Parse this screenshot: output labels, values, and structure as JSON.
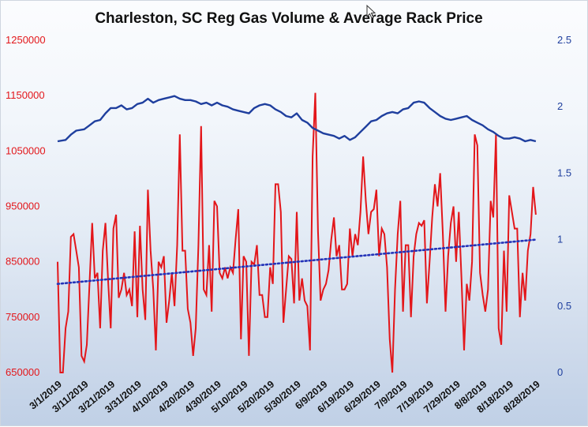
{
  "chart_data": {
    "type": "line",
    "title": "Charleston, SC Reg Gas Volume & Average Rack Price",
    "y_left": {
      "ticks": [
        "650000",
        "750000",
        "850000",
        "950000",
        "1050000",
        "1150000",
        "1250000"
      ],
      "range": [
        650000,
        1250000
      ],
      "color": "#e3161a"
    },
    "y_right": {
      "ticks": [
        "0",
        "0.5",
        "1",
        "1.5",
        "2",
        "2.5"
      ],
      "range": [
        0,
        2.5
      ],
      "color": "#1f3f9e"
    },
    "x_ticks": [
      "3/1/2019",
      "3/11/2019",
      "3/21/2019",
      "3/31/2019",
      "4/10/2019",
      "4/20/2019",
      "4/30/2019",
      "5/10/2019",
      "5/20/2019",
      "5/30/2019",
      "6/9/2019",
      "6/19/2019",
      "6/29/2019",
      "7/9/2019",
      "7/19/2019",
      "7/29/2019",
      "8/8/2019",
      "8/18/2019",
      "8/28/2019"
    ],
    "x_range_days": [
      0,
      183
    ],
    "series": [
      {
        "axis": "left",
        "color": "#e3161a",
        "points": [
          [
            0,
            850000
          ],
          [
            1,
            650000
          ],
          [
            2,
            650000
          ],
          [
            3,
            730000
          ],
          [
            4,
            760000
          ],
          [
            5,
            895000
          ],
          [
            6,
            900000
          ],
          [
            7,
            870000
          ],
          [
            8,
            840000
          ],
          [
            9,
            680000
          ],
          [
            10,
            670000
          ],
          [
            11,
            700000
          ],
          [
            12,
            810000
          ],
          [
            13,
            920000
          ],
          [
            14,
            820000
          ],
          [
            15,
            830000
          ],
          [
            16,
            730000
          ],
          [
            17,
            870000
          ],
          [
            18,
            920000
          ],
          [
            19,
            815000
          ],
          [
            20,
            730000
          ],
          [
            21,
            910000
          ],
          [
            22,
            935000
          ],
          [
            23,
            785000
          ],
          [
            24,
            800000
          ],
          [
            25,
            830000
          ],
          [
            26,
            790000
          ],
          [
            27,
            800000
          ],
          [
            28,
            770000
          ],
          [
            29,
            905000
          ],
          [
            30,
            750000
          ],
          [
            31,
            915000
          ],
          [
            32,
            800000
          ],
          [
            33,
            745000
          ],
          [
            34,
            980000
          ],
          [
            35,
            870000
          ],
          [
            36,
            800000
          ],
          [
            37,
            690000
          ],
          [
            38,
            850000
          ],
          [
            39,
            840000
          ],
          [
            40,
            860000
          ],
          [
            41,
            740000
          ],
          [
            42,
            780000
          ],
          [
            43,
            830000
          ],
          [
            44,
            770000
          ],
          [
            45,
            880000
          ],
          [
            46,
            1080000
          ],
          [
            47,
            870000
          ],
          [
            48,
            870000
          ],
          [
            49,
            765000
          ],
          [
            50,
            740000
          ],
          [
            51,
            680000
          ],
          [
            52,
            730000
          ],
          [
            53,
            880000
          ],
          [
            54,
            1095000
          ],
          [
            55,
            800000
          ],
          [
            56,
            790000
          ],
          [
            57,
            880000
          ],
          [
            58,
            760000
          ],
          [
            59,
            960000
          ],
          [
            60,
            950000
          ],
          [
            61,
            830000
          ],
          [
            62,
            820000
          ],
          [
            63,
            840000
          ],
          [
            64,
            820000
          ],
          [
            65,
            840000
          ],
          [
            66,
            830000
          ],
          [
            67,
            890000
          ],
          [
            68,
            945000
          ],
          [
            69,
            710000
          ],
          [
            70,
            860000
          ],
          [
            71,
            850000
          ],
          [
            72,
            680000
          ],
          [
            73,
            850000
          ],
          [
            74,
            845000
          ],
          [
            75,
            880000
          ],
          [
            76,
            790000
          ],
          [
            77,
            790000
          ],
          [
            78,
            750000
          ],
          [
            79,
            750000
          ],
          [
            80,
            840000
          ],
          [
            81,
            810000
          ],
          [
            82,
            990000
          ],
          [
            83,
            990000
          ],
          [
            84,
            940000
          ],
          [
            85,
            740000
          ],
          [
            86,
            800000
          ],
          [
            87,
            860000
          ],
          [
            88,
            855000
          ],
          [
            89,
            775000
          ],
          [
            90,
            940000
          ],
          [
            91,
            780000
          ],
          [
            92,
            820000
          ],
          [
            93,
            780000
          ],
          [
            94,
            770000
          ],
          [
            95,
            690000
          ],
          [
            96,
            1040000
          ],
          [
            97,
            1155000
          ],
          [
            98,
            905000
          ],
          [
            99,
            780000
          ],
          [
            100,
            800000
          ],
          [
            101,
            810000
          ],
          [
            102,
            835000
          ],
          [
            103,
            890000
          ],
          [
            104,
            930000
          ],
          [
            105,
            860000
          ],
          [
            106,
            880000
          ],
          [
            107,
            800000
          ],
          [
            108,
            800000
          ],
          [
            109,
            810000
          ],
          [
            110,
            910000
          ],
          [
            111,
            860000
          ],
          [
            112,
            900000
          ],
          [
            113,
            880000
          ],
          [
            114,
            940000
          ],
          [
            115,
            1040000
          ],
          [
            116,
            960000
          ],
          [
            117,
            900000
          ],
          [
            118,
            940000
          ],
          [
            119,
            945000
          ],
          [
            120,
            980000
          ],
          [
            121,
            860000
          ],
          [
            122,
            910000
          ],
          [
            123,
            900000
          ],
          [
            124,
            840000
          ],
          [
            125,
            710000
          ],
          [
            126,
            650000
          ],
          [
            127,
            800000
          ],
          [
            128,
            900000
          ],
          [
            129,
            960000
          ],
          [
            130,
            760000
          ],
          [
            131,
            880000
          ],
          [
            132,
            880000
          ],
          [
            133,
            750000
          ],
          [
            134,
            860000
          ],
          [
            135,
            900000
          ],
          [
            136,
            920000
          ],
          [
            137,
            915000
          ],
          [
            138,
            925000
          ],
          [
            139,
            775000
          ],
          [
            140,
            850000
          ],
          [
            141,
            930000
          ],
          [
            142,
            990000
          ],
          [
            143,
            950000
          ],
          [
            144,
            1010000
          ],
          [
            145,
            900000
          ],
          [
            146,
            760000
          ],
          [
            147,
            860000
          ],
          [
            148,
            920000
          ],
          [
            149,
            950000
          ],
          [
            150,
            850000
          ],
          [
            151,
            940000
          ],
          [
            152,
            820000
          ],
          [
            153,
            690000
          ],
          [
            154,
            810000
          ],
          [
            155,
            780000
          ],
          [
            156,
            850000
          ],
          [
            157,
            1080000
          ],
          [
            158,
            1060000
          ],
          [
            159,
            830000
          ],
          [
            160,
            790000
          ],
          [
            161,
            760000
          ],
          [
            162,
            800000
          ],
          [
            163,
            960000
          ],
          [
            164,
            930000
          ],
          [
            165,
            1080000
          ],
          [
            166,
            730000
          ],
          [
            167,
            700000
          ],
          [
            168,
            870000
          ],
          [
            169,
            760000
          ],
          [
            170,
            970000
          ],
          [
            171,
            940000
          ],
          [
            172,
            910000
          ],
          [
            173,
            910000
          ],
          [
            174,
            750000
          ],
          [
            175,
            830000
          ],
          [
            176,
            780000
          ],
          [
            177,
            870000
          ],
          [
            178,
            900000
          ],
          [
            179,
            985000
          ],
          [
            180,
            935000
          ]
        ]
      },
      {
        "axis": "right",
        "color": "#1f3f9e",
        "points": [
          [
            0,
            1.74
          ],
          [
            3,
            1.75
          ],
          [
            5,
            1.79
          ],
          [
            7,
            1.82
          ],
          [
            10,
            1.83
          ],
          [
            12,
            1.86
          ],
          [
            14,
            1.89
          ],
          [
            16,
            1.9
          ],
          [
            18,
            1.95
          ],
          [
            20,
            1.99
          ],
          [
            22,
            1.99
          ],
          [
            24,
            2.01
          ],
          [
            26,
            1.98
          ],
          [
            28,
            1.99
          ],
          [
            30,
            2.02
          ],
          [
            32,
            2.03
          ],
          [
            34,
            2.06
          ],
          [
            36,
            2.03
          ],
          [
            38,
            2.05
          ],
          [
            40,
            2.06
          ],
          [
            42,
            2.07
          ],
          [
            44,
            2.08
          ],
          [
            46,
            2.06
          ],
          [
            48,
            2.05
          ],
          [
            50,
            2.05
          ],
          [
            52,
            2.04
          ],
          [
            54,
            2.02
          ],
          [
            56,
            2.03
          ],
          [
            58,
            2.01
          ],
          [
            60,
            2.03
          ],
          [
            62,
            2.01
          ],
          [
            64,
            2.0
          ],
          [
            66,
            1.98
          ],
          [
            68,
            1.97
          ],
          [
            70,
            1.96
          ],
          [
            72,
            1.95
          ],
          [
            74,
            1.99
          ],
          [
            76,
            2.01
          ],
          [
            78,
            2.02
          ],
          [
            80,
            2.01
          ],
          [
            82,
            1.98
          ],
          [
            84,
            1.96
          ],
          [
            86,
            1.93
          ],
          [
            88,
            1.92
          ],
          [
            90,
            1.95
          ],
          [
            92,
            1.9
          ],
          [
            94,
            1.88
          ],
          [
            96,
            1.84
          ],
          [
            98,
            1.82
          ],
          [
            100,
            1.8
          ],
          [
            102,
            1.79
          ],
          [
            104,
            1.78
          ],
          [
            106,
            1.76
          ],
          [
            108,
            1.78
          ],
          [
            110,
            1.75
          ],
          [
            112,
            1.77
          ],
          [
            114,
            1.81
          ],
          [
            116,
            1.85
          ],
          [
            118,
            1.89
          ],
          [
            120,
            1.9
          ],
          [
            122,
            1.93
          ],
          [
            124,
            1.95
          ],
          [
            126,
            1.96
          ],
          [
            128,
            1.95
          ],
          [
            130,
            1.98
          ],
          [
            132,
            1.99
          ],
          [
            134,
            2.03
          ],
          [
            136,
            2.04
          ],
          [
            138,
            2.03
          ],
          [
            140,
            1.99
          ],
          [
            142,
            1.96
          ],
          [
            144,
            1.93
          ],
          [
            146,
            1.91
          ],
          [
            148,
            1.9
          ],
          [
            150,
            1.91
          ],
          [
            152,
            1.92
          ],
          [
            154,
            1.93
          ],
          [
            156,
            1.9
          ],
          [
            158,
            1.88
          ],
          [
            160,
            1.86
          ],
          [
            162,
            1.83
          ],
          [
            164,
            1.81
          ],
          [
            166,
            1.78
          ],
          [
            168,
            1.76
          ],
          [
            170,
            1.76
          ],
          [
            172,
            1.77
          ],
          [
            174,
            1.76
          ],
          [
            176,
            1.74
          ],
          [
            178,
            1.75
          ],
          [
            180,
            1.74
          ]
        ]
      },
      {
        "axis": "left",
        "color": "#2433b8",
        "style": "dotted-trendline",
        "points": [
          [
            0,
            810000
          ],
          [
            180,
            890000
          ]
        ]
      }
    ]
  }
}
